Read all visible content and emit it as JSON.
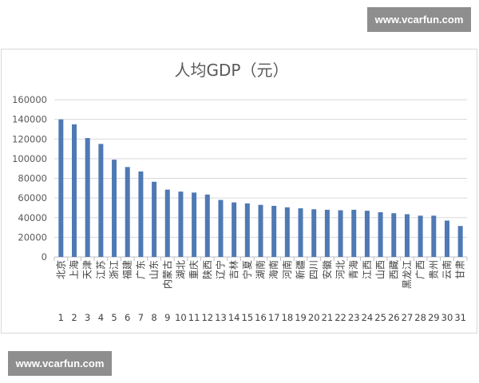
{
  "watermarks": {
    "top": "www.vcarfun.com",
    "bottom": "www.vcarfun.com"
  },
  "chart_data": {
    "type": "bar",
    "title": "人均GDP（元）",
    "categories": [
      "北京",
      "上海",
      "天津",
      "江苏",
      "浙江",
      "福建",
      "广东",
      "山东",
      "内蒙古",
      "湖北",
      "重庆",
      "陕西",
      "辽宁",
      "吉林",
      "宁夏",
      "湖南",
      "海南",
      "河南",
      "新疆",
      "四川",
      "安徽",
      "河北",
      "青海",
      "江西",
      "山西",
      "西藏",
      "黑龙江",
      "广西",
      "贵州",
      "云南",
      "甘肃"
    ],
    "index_labels": [
      "1",
      "2",
      "3",
      "4",
      "5",
      "6",
      "7",
      "8",
      "9",
      "10",
      "11",
      "12",
      "13",
      "14",
      "15",
      "16",
      "17",
      "18",
      "19",
      "20",
      "21",
      "22",
      "23",
      "24",
      "25",
      "26",
      "27",
      "28",
      "29",
      "30",
      "31"
    ],
    "values": [
      140000,
      135000,
      121000,
      115000,
      99000,
      91500,
      87000,
      76500,
      68500,
      66500,
      65500,
      63500,
      58000,
      55500,
      54500,
      53000,
      52000,
      50500,
      49500,
      48500,
      48000,
      47500,
      48000,
      47000,
      45500,
      44500,
      43500,
      42000,
      42000,
      37000,
      31500
    ],
    "ylim": [
      0,
      160000
    ],
    "yticks": [
      0,
      20000,
      40000,
      60000,
      80000,
      100000,
      120000,
      140000,
      160000
    ],
    "bar_color": "#4f79b4",
    "grid": true,
    "legend": "none"
  }
}
